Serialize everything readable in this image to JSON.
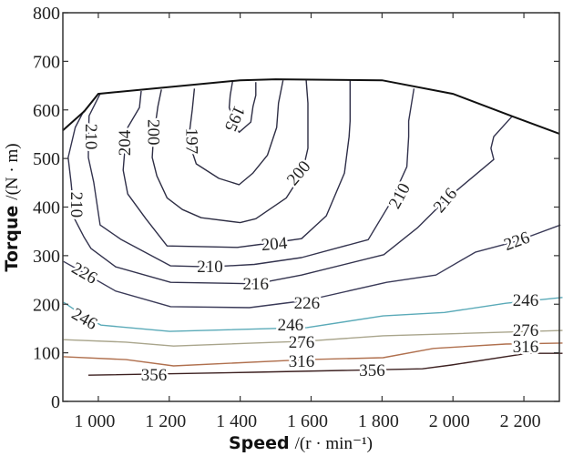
{
  "chart_data": {
    "type": "contour",
    "title": "",
    "xlabel": {
      "bold": "Speed",
      "unit": "/(r · min⁻¹)"
    },
    "ylabel": {
      "bold": "Torque",
      "unit": "/(N · m)"
    },
    "xlim": [
      900,
      2300
    ],
    "ylim": [
      0,
      800
    ],
    "xticks": [
      1000,
      1200,
      1400,
      1600,
      1800,
      2000,
      2200
    ],
    "xtick_labels": [
      "1 000",
      "1 200",
      "1 400",
      "1 600",
      "1 800",
      "2 000",
      "2 200"
    ],
    "yticks": [
      0,
      100,
      200,
      300,
      400,
      500,
      600,
      700,
      800
    ],
    "ytick_labels": [
      "0",
      "100",
      "200",
      "300",
      "400",
      "500",
      "600",
      "700",
      "800"
    ],
    "grid": false,
    "boundary": {
      "name": "max torque curve",
      "color": "#111111",
      "points": [
        [
          900,
          558
        ],
        [
          960,
          597
        ],
        [
          1000,
          633
        ],
        [
          1400,
          661
        ],
        [
          1500,
          663
        ],
        [
          1800,
          661
        ],
        [
          2000,
          633
        ],
        [
          2170,
          586
        ],
        [
          2300,
          551
        ]
      ]
    },
    "contours": [
      {
        "level": 195,
        "color": "#2e2e44",
        "points": [
          [
            1379,
            661
          ],
          [
            1372,
            630
          ],
          [
            1369,
            605
          ],
          [
            1385,
            570
          ],
          [
            1397,
            554
          ],
          [
            1430,
            575
          ],
          [
            1436,
            607
          ],
          [
            1444,
            630
          ],
          [
            1444,
            657
          ]
        ]
      },
      {
        "level": 197,
        "color": "#2e2e44",
        "points": [
          [
            1271,
            644
          ],
          [
            1265,
            601
          ],
          [
            1258,
            560
          ],
          [
            1262,
            520
          ],
          [
            1276,
            489
          ],
          [
            1340,
            459
          ],
          [
            1397,
            446
          ],
          [
            1436,
            470
          ],
          [
            1477,
            507
          ],
          [
            1503,
            564
          ],
          [
            1508,
            614
          ],
          [
            1521,
            661
          ]
        ]
      },
      {
        "level": 200,
        "color": "#2e2e44",
        "points": [
          [
            1178,
            642
          ],
          [
            1168,
            607
          ],
          [
            1155,
            540
          ],
          [
            1152,
            502
          ],
          [
            1165,
            464
          ],
          [
            1194,
            419
          ],
          [
            1237,
            395
          ],
          [
            1290,
            378
          ],
          [
            1400,
            368
          ],
          [
            1444,
            376
          ],
          [
            1530,
            419
          ],
          [
            1575,
            470
          ],
          [
            1591,
            521
          ],
          [
            1591,
            614
          ],
          [
            1586,
            661
          ]
        ]
      },
      {
        "level": 204,
        "color": "#2e2e48",
        "points": [
          [
            1121,
            639
          ],
          [
            1116,
            605
          ],
          [
            1083,
            564
          ],
          [
            1075,
            520
          ],
          [
            1070,
            476
          ],
          [
            1083,
            427
          ],
          [
            1134,
            376
          ],
          [
            1194,
            320
          ],
          [
            1392,
            317
          ],
          [
            1496,
            327
          ],
          [
            1573,
            335
          ],
          [
            1643,
            382
          ],
          [
            1694,
            470
          ],
          [
            1707,
            545
          ],
          [
            1710,
            577
          ],
          [
            1710,
            661
          ]
        ]
      },
      {
        "level": 210,
        "color": "#33334e",
        "points": [
          [
            1005,
            633
          ],
          [
            974,
            588
          ],
          [
            972,
            545
          ],
          [
            972,
            502
          ],
          [
            987,
            451
          ],
          [
            1005,
            363
          ],
          [
            1065,
            333
          ],
          [
            1204,
            279
          ],
          [
            1315,
            277
          ],
          [
            1440,
            282
          ],
          [
            1573,
            296
          ],
          [
            1761,
            333
          ],
          [
            1823,
            408
          ],
          [
            1870,
            483
          ],
          [
            1875,
            545
          ],
          [
            1875,
            577
          ],
          [
            1890,
            644
          ]
        ]
      },
      {
        "level": 216,
        "color": "#33334e",
        "points": [
          [
            959,
            598
          ],
          [
            935,
            564
          ],
          [
            915,
            502
          ],
          [
            923,
            451
          ],
          [
            933,
            376
          ],
          [
            959,
            339
          ],
          [
            979,
            315
          ],
          [
            1049,
            277
          ],
          [
            1204,
            245
          ],
          [
            1444,
            242
          ],
          [
            1573,
            260
          ],
          [
            1805,
            302
          ],
          [
            1901,
            358
          ],
          [
            1978,
            414
          ],
          [
            2038,
            451
          ],
          [
            2115,
            498
          ],
          [
            2107,
            521
          ],
          [
            2115,
            545
          ],
          [
            2166,
            586
          ]
        ]
      },
      {
        "level": 226,
        "color": "#3a3a58",
        "points": [
          [
            902,
            288
          ],
          [
            961,
            264
          ],
          [
            1049,
            227
          ],
          [
            1204,
            195
          ],
          [
            1426,
            193
          ],
          [
            1588,
            208
          ],
          [
            1813,
            245
          ],
          [
            1952,
            260
          ],
          [
            2063,
            307
          ],
          [
            2180,
            330
          ],
          [
            2303,
            363
          ]
        ]
      },
      {
        "level": 246,
        "color": "#5aaab8",
        "points": [
          [
            902,
            204
          ],
          [
            961,
            175
          ],
          [
            1008,
            157
          ],
          [
            1201,
            144
          ],
          [
            1588,
            152
          ],
          [
            1803,
            176
          ],
          [
            1976,
            183
          ],
          [
            2149,
            202
          ],
          [
            2309,
            214
          ]
        ]
      },
      {
        "level": 276,
        "color": "#a9a58c",
        "points": [
          [
            902,
            127
          ],
          [
            1078,
            122
          ],
          [
            1212,
            114
          ],
          [
            1588,
            124
          ],
          [
            1803,
            135
          ],
          [
            2309,
            146
          ]
        ]
      },
      {
        "level": 316,
        "color": "#b0704e",
        "points": [
          [
            902,
            92
          ],
          [
            1078,
            86
          ],
          [
            1212,
            73
          ],
          [
            1588,
            86
          ],
          [
            1803,
            90
          ],
          [
            1945,
            109
          ],
          [
            2149,
            118
          ],
          [
            2309,
            120
          ]
        ]
      },
      {
        "level": 356,
        "color": "#3c2020",
        "points": [
          [
            972,
            54
          ],
          [
            1436,
            60
          ],
          [
            1914,
            67
          ],
          [
            1996,
            75
          ],
          [
            2210,
            99
          ],
          [
            2309,
            99
          ]
        ]
      }
    ],
    "labels": [
      {
        "text": "195",
        "at": [
          1385,
          582
        ]
      },
      {
        "text": "197",
        "at": [
          1263,
          536
        ]
      },
      {
        "text": "200",
        "at": [
          1155,
          554
        ]
      },
      {
        "text": "204",
        "at": [
          1075,
          532
        ]
      },
      {
        "text": "210",
        "at": [
          979,
          545
        ]
      },
      {
        "text": "210",
        "at": [
          938,
          405
        ]
      },
      {
        "text": "200",
        "at": [
          1565,
          470
        ]
      },
      {
        "text": "210",
        "at": [
          1849,
          423
        ]
      },
      {
        "text": "216",
        "at": [
          1978,
          414
        ]
      },
      {
        "text": "226",
        "at": [
          2180,
          330
        ]
      },
      {
        "text": "204",
        "at": [
          1496,
          324
        ]
      },
      {
        "text": "210",
        "at": [
          1315,
          277
        ]
      },
      {
        "text": "216",
        "at": [
          1444,
          242
        ]
      },
      {
        "text": "226",
        "at": [
          1588,
          202
        ]
      },
      {
        "text": "226",
        "at": [
          961,
          264
        ]
      },
      {
        "text": "246",
        "at": [
          961,
          170
        ]
      },
      {
        "text": "246",
        "at": [
          1542,
          157
        ]
      },
      {
        "text": "246",
        "at": [
          2205,
          208
        ]
      },
      {
        "text": "276",
        "at": [
          1573,
          122
        ]
      },
      {
        "text": "276",
        "at": [
          2205,
          146
        ]
      },
      {
        "text": "316",
        "at": [
          1573,
          82
        ]
      },
      {
        "text": "316",
        "at": [
          2205,
          112
        ]
      },
      {
        "text": "356",
        "at": [
          1157,
          54
        ]
      },
      {
        "text": "356",
        "at": [
          1772,
          64
        ]
      }
    ]
  }
}
